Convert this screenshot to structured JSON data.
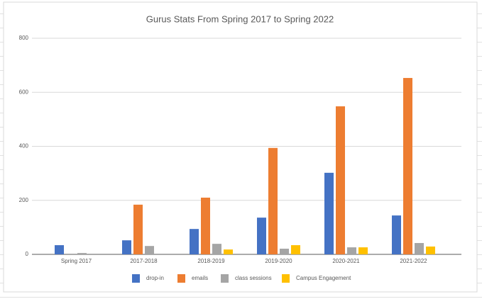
{
  "chart_data": {
    "type": "bar",
    "title": "Gurus Stats From Spring 2017 to Spring 2022",
    "categories": [
      "Spring 2017",
      "2017-2018",
      "2018-2019",
      "2019-2020",
      "2020-2021",
      "2021-2022"
    ],
    "series": [
      {
        "name": "drop-in",
        "color": "#4472c4",
        "values": [
          34,
          52,
          94,
          136,
          302,
          144
        ]
      },
      {
        "name": "emails",
        "color": "#ed7d31",
        "values": [
          null,
          184,
          210,
          394,
          548,
          653
        ]
      },
      {
        "name": "class sessions",
        "color": "#a5a5a5",
        "values": [
          5,
          31,
          39,
          21,
          26,
          42
        ]
      },
      {
        "name": "Campus Engagement",
        "color": "#ffc000",
        "values": [
          null,
          null,
          18,
          34,
          26,
          29
        ]
      }
    ],
    "ylim": [
      0,
      800
    ],
    "yticks": [
      0,
      200,
      400,
      600,
      800
    ],
    "grid": true,
    "legend": "bottom"
  }
}
